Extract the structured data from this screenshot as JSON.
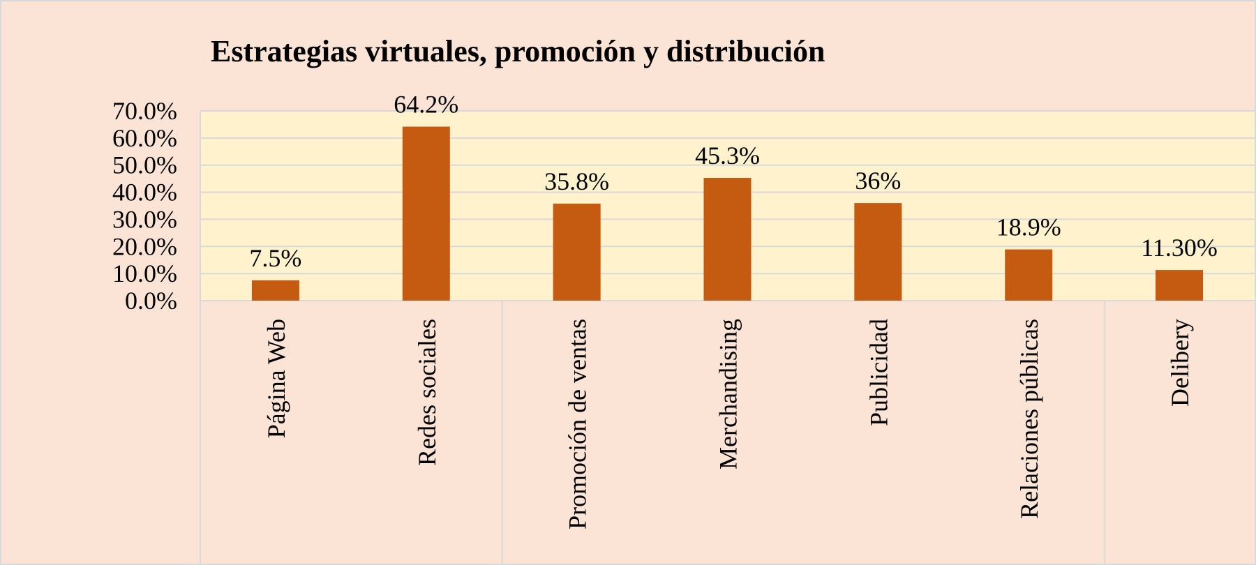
{
  "chart_data": {
    "type": "bar",
    "title": "Estrategias virtuales, promoción y distribución",
    "categories": [
      "Página Web",
      "Redes sociales",
      "Promoción de ventas",
      "Merchandising",
      "Publicidad",
      "Relaciones públicas",
      "Delibery"
    ],
    "values": [
      7.5,
      64.2,
      35.8,
      45.3,
      36,
      18.9,
      11.3
    ],
    "value_labels": [
      "7.5%",
      "64.2%",
      "35.8%",
      "45.3%",
      "36%",
      "18.9%",
      "11.30%"
    ],
    "y_ticks": [
      "0.0%",
      "10.0%",
      "20.0%",
      "30.0%",
      "40.0%",
      "50.0%",
      "60.0%",
      "70.0%"
    ],
    "y_tick_values": [
      0,
      10,
      20,
      30,
      40,
      50,
      60,
      70
    ],
    "ylim": [
      0,
      70
    ],
    "xlabel": "",
    "ylabel": "",
    "grid": true,
    "legend": "none",
    "colors": {
      "bar": "#c55a11",
      "plot_background": "#fff2cc",
      "page_background": "#fbe4d6",
      "grid": "#d9d9d9"
    }
  }
}
